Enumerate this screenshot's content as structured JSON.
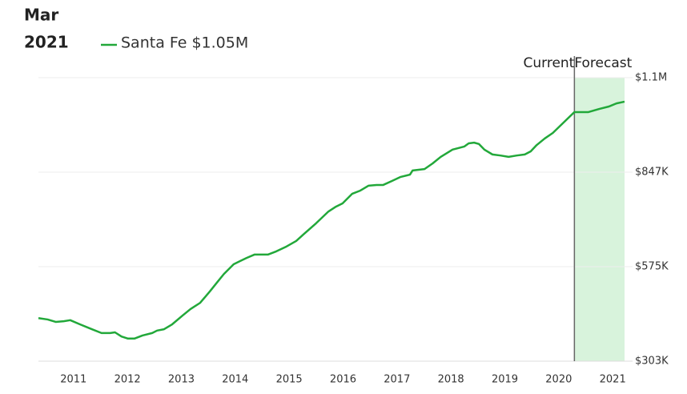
{
  "chart_data": {
    "type": "line",
    "header_month": "Mar",
    "header_year": "2021",
    "legend_value": "$1.05M",
    "current_label": "Current",
    "forecast_label": "Forecast",
    "current_x": 2020.29,
    "x": [
      2010.35,
      2010.52,
      2010.67,
      2010.82,
      2010.94,
      2011.12,
      2011.34,
      2011.52,
      2011.68,
      2011.77,
      2011.89,
      2012.01,
      2012.13,
      2012.28,
      2012.46,
      2012.55,
      2012.68,
      2012.83,
      2013.02,
      2013.17,
      2013.35,
      2013.53,
      2013.67,
      2013.79,
      2013.97,
      2014.09,
      2014.21,
      2014.36,
      2014.61,
      2014.76,
      2014.95,
      2015.13,
      2015.28,
      2015.5,
      2015.73,
      2015.87,
      2015.99,
      2016.17,
      2016.32,
      2016.47,
      2016.62,
      2016.74,
      2016.91,
      2017.06,
      2017.24,
      2017.29,
      2017.51,
      2017.66,
      2017.81,
      2018.03,
      2018.25,
      2018.33,
      2018.43,
      2018.52,
      2018.62,
      2018.77,
      2018.92,
      2019.07,
      2019.22,
      2019.37,
      2019.48,
      2019.59,
      2019.74,
      2019.89,
      2020.03,
      2020.29,
      2020.55,
      2020.75,
      2020.93,
      2021.07,
      2021.22
    ],
    "series": [
      {
        "name": "Santa Fe",
        "color": "#22a83a",
        "values": [
          427000,
          423000,
          416000,
          418000,
          421000,
          409000,
          395000,
          384000,
          384000,
          386000,
          374000,
          368000,
          368000,
          377000,
          384000,
          391000,
          395000,
          409000,
          434000,
          453000,
          471000,
          504000,
          531000,
          554000,
          582000,
          591000,
          600000,
          610000,
          610000,
          619000,
          633000,
          649000,
          670000,
          700000,
          734000,
          748000,
          757000,
          785000,
          794000,
          808000,
          810000,
          810000,
          822000,
          833000,
          840000,
          852000,
          856000,
          872000,
          891000,
          912000,
          921000,
          930000,
          932000,
          928000,
          912000,
          898000,
          895000,
          891000,
          895000,
          898000,
          907000,
          925000,
          944000,
          960000,
          981000,
          1020000,
          1020000,
          1029000,
          1036000,
          1045000,
          1050000
        ]
      }
    ],
    "xlim": [
      2010.35,
      2021.22
    ],
    "xticks": [
      2011,
      2012,
      2013,
      2014,
      2015,
      2016,
      2017,
      2018,
      2019,
      2020,
      2021
    ],
    "ylim": [
      303000,
      1119000
    ],
    "yticks": [
      {
        "value": 303000,
        "label": "$303K"
      },
      {
        "value": 575000,
        "label": "$575K"
      },
      {
        "value": 847000,
        "label": "$847K"
      },
      {
        "value": 1119000,
        "label": "$1.1M"
      }
    ],
    "grid": true,
    "forecast_color": "#d8f3dc"
  }
}
